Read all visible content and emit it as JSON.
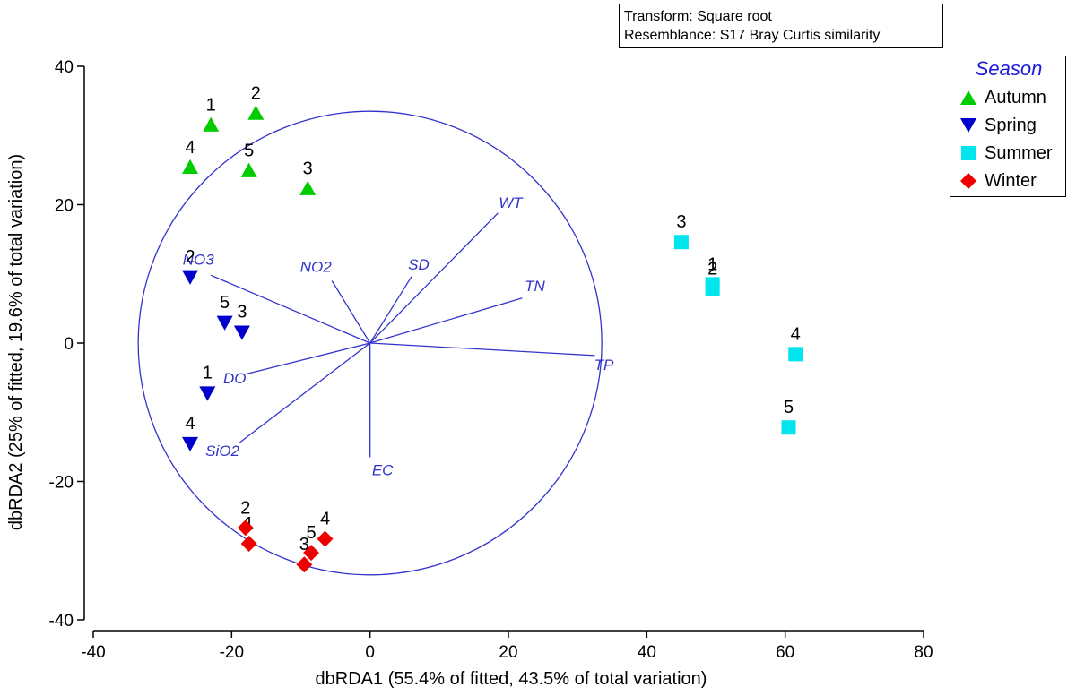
{
  "info": {
    "transform": "Transform: Square root",
    "resemblance": "Resemblance: S17 Bray Curtis similarity"
  },
  "legend": {
    "title": "Season",
    "items": [
      {
        "label": "Autumn",
        "symbol": "triangle-up",
        "color": "#00cc00"
      },
      {
        "label": "Spring",
        "symbol": "triangle-down",
        "color": "#0000cc"
      },
      {
        "label": "Summer",
        "symbol": "square",
        "color": "#00e5ee"
      },
      {
        "label": "Winter",
        "symbol": "diamond",
        "color": "#ee0000"
      }
    ]
  },
  "chart_data": {
    "type": "scatter",
    "title": "",
    "xlabel": "dbRDA1 (55.4% of fitted, 43.5% of total variation)",
    "ylabel": "dbRDA2 (25% of fitted, 19.6% of total variation)",
    "xlim": [
      -40,
      80
    ],
    "ylim": [
      -40,
      40
    ],
    "xticks": [
      -40,
      -20,
      0,
      20,
      40,
      60,
      80
    ],
    "yticks": [
      -40,
      -20,
      0,
      20,
      40
    ],
    "circle": {
      "center": [
        0,
        0
      ],
      "radius": 33.5,
      "color": "#3333cc"
    },
    "vectors": [
      {
        "label": "WT",
        "x": 18.5,
        "y": 18.8
      },
      {
        "label": "SD",
        "x": 6.0,
        "y": 9.6
      },
      {
        "label": "TN",
        "x": 22.0,
        "y": 6.5
      },
      {
        "label": "TP",
        "x": 32.5,
        "y": -1.8
      },
      {
        "label": "NO2",
        "x": -5.5,
        "y": 9.0
      },
      {
        "label": "NO3",
        "x": -23.0,
        "y": 9.8
      },
      {
        "label": "DO",
        "x": -18.0,
        "y": -4.5
      },
      {
        "label": "SiO2",
        "x": -19.0,
        "y": -14.5
      },
      {
        "label": "EC",
        "x": 0.0,
        "y": -16.5
      }
    ],
    "series": [
      {
        "name": "Autumn",
        "symbol": "triangle-up",
        "color": "#00cc00",
        "points": [
          {
            "label": "1",
            "x": -23.0,
            "y": 31.5
          },
          {
            "label": "2",
            "x": -16.5,
            "y": 33.2
          },
          {
            "label": "3",
            "x": -9.0,
            "y": 22.3
          },
          {
            "label": "4",
            "x": -26.0,
            "y": 25.4
          },
          {
            "label": "5",
            "x": -17.5,
            "y": 24.9
          }
        ]
      },
      {
        "name": "Spring",
        "symbol": "triangle-down",
        "color": "#0000cc",
        "points": [
          {
            "label": "1",
            "x": -23.5,
            "y": -7.2
          },
          {
            "label": "2",
            "x": -26.0,
            "y": 9.6
          },
          {
            "label": "3",
            "x": -18.5,
            "y": 1.6
          },
          {
            "label": "4",
            "x": -26.0,
            "y": -14.5
          },
          {
            "label": "5",
            "x": -21.0,
            "y": 3.0
          }
        ]
      },
      {
        "name": "Summer",
        "symbol": "square",
        "color": "#00e5ee",
        "points": [
          {
            "label": "1",
            "x": 49.5,
            "y": 8.5
          },
          {
            "label": "2",
            "x": 49.5,
            "y": 7.8
          },
          {
            "label": "3",
            "x": 45.0,
            "y": 14.6
          },
          {
            "label": "4",
            "x": 61.5,
            "y": -1.6
          },
          {
            "label": "5",
            "x": 60.5,
            "y": -12.2
          }
        ]
      },
      {
        "name": "Winter",
        "symbol": "diamond",
        "color": "#ee0000",
        "points": [
          {
            "label": "1",
            "x": -17.5,
            "y": -29.0
          },
          {
            "label": "2",
            "x": -18.0,
            "y": -26.7
          },
          {
            "label": "3",
            "x": -9.5,
            "y": -32.0
          },
          {
            "label": "4",
            "x": -6.5,
            "y": -28.3
          },
          {
            "label": "5",
            "x": -8.5,
            "y": -30.3
          }
        ]
      }
    ]
  }
}
